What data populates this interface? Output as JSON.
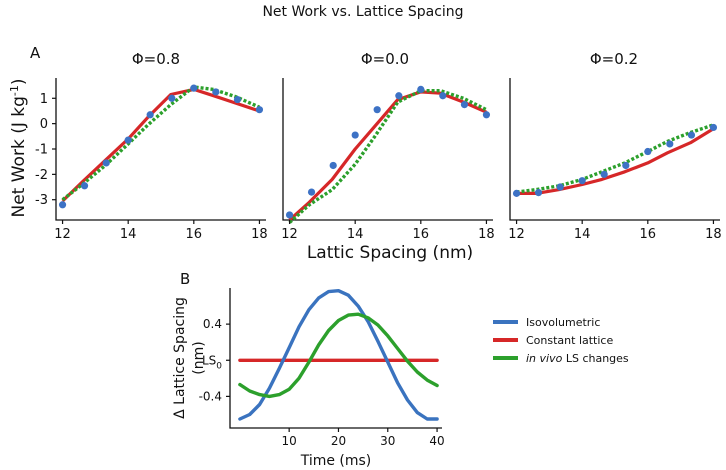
{
  "figure_title": "Net Work vs. Lattice Spacing",
  "panel_a_label": "A",
  "panel_b_label": "B",
  "colors": {
    "red": "#d62728",
    "green": "#2ca02c",
    "blue_line": "#3a73bf",
    "blue_point": "#3d72c5",
    "axis": "#111111"
  },
  "chart_data": [
    {
      "type": "line",
      "panel": "A",
      "title": "Φ=0.8",
      "xlabel": "Lattic Spacing (nm)",
      "ylabel": "Net Work (J kg⁻¹)",
      "xlim": [
        11.8,
        18.2
      ],
      "ylim": [
        -3.8,
        1.8
      ],
      "xticks": [
        "12",
        "14",
        "16",
        "18"
      ],
      "yticks": [
        "1",
        "0",
        "-1",
        "-2",
        "-3"
      ],
      "series": [
        {
          "name": "Constant lattice",
          "style": "solid",
          "color": "#d62728",
          "x": [
            12,
            12.6,
            13.3,
            14,
            14.6,
            15.3,
            16,
            16.6,
            17.3,
            18
          ],
          "y": [
            -3.05,
            -2.3,
            -1.45,
            -0.6,
            0.25,
            1.15,
            1.35,
            1.1,
            0.8,
            0.5
          ]
        },
        {
          "name": "in vivo LS changes",
          "style": "dotted",
          "color": "#2ca02c",
          "x": [
            12,
            12.6,
            13.3,
            14,
            14.6,
            15.3,
            16,
            16.6,
            17.3,
            18
          ],
          "y": [
            -3.0,
            -2.4,
            -1.65,
            -0.8,
            -0.05,
            0.75,
            1.45,
            1.35,
            1.05,
            0.65
          ]
        },
        {
          "name": "Isovolumetric",
          "style": "points",
          "color": "#3d72c5",
          "x": [
            12,
            12.67,
            13.33,
            14,
            14.67,
            15.33,
            16,
            16.67,
            17.33,
            18
          ],
          "y": [
            -3.2,
            -2.45,
            -1.55,
            -0.65,
            0.35,
            1.0,
            1.4,
            1.25,
            0.95,
            0.55
          ]
        }
      ]
    },
    {
      "type": "line",
      "panel": "A",
      "title": "Φ=0.0",
      "xlim": [
        11.8,
        18.2
      ],
      "ylim": [
        -3.8,
        1.8
      ],
      "xticks": [
        "12",
        "14",
        "16",
        "18"
      ],
      "series": [
        {
          "name": "Constant lattice",
          "style": "solid",
          "color": "#d62728",
          "x": [
            12,
            12.6,
            13.3,
            14,
            14.6,
            15.3,
            16,
            16.6,
            17.3,
            18
          ],
          "y": [
            -3.8,
            -3.1,
            -2.2,
            -1.0,
            -0.1,
            0.95,
            1.25,
            1.2,
            0.85,
            0.45
          ]
        },
        {
          "name": "in vivo LS changes",
          "style": "dotted",
          "color": "#2ca02c",
          "x": [
            12,
            12.6,
            13.3,
            14,
            14.6,
            15.3,
            16,
            16.6,
            17.3,
            18
          ],
          "y": [
            -3.9,
            -3.2,
            -2.6,
            -1.6,
            -0.5,
            0.85,
            1.3,
            1.3,
            1.0,
            0.55
          ]
        },
        {
          "name": "Isovolumetric",
          "style": "points",
          "color": "#3d72c5",
          "x": [
            12,
            12.67,
            13.33,
            14,
            14.67,
            15.33,
            16,
            16.67,
            17.33,
            18
          ],
          "y": [
            -3.6,
            -2.7,
            -1.65,
            -0.45,
            0.55,
            1.1,
            1.35,
            1.1,
            0.75,
            0.35
          ]
        }
      ]
    },
    {
      "type": "line",
      "panel": "A",
      "title": "Φ=0.2",
      "xlim": [
        11.8,
        18.2
      ],
      "ylim": [
        -3.8,
        1.8
      ],
      "xticks": [
        "12",
        "14",
        "16",
        "18"
      ],
      "series": [
        {
          "name": "Constant lattice",
          "style": "solid",
          "color": "#d62728",
          "x": [
            12,
            12.6,
            13.3,
            14,
            14.6,
            15.3,
            16,
            16.6,
            17.3,
            18
          ],
          "y": [
            -2.75,
            -2.75,
            -2.6,
            -2.4,
            -2.2,
            -1.9,
            -1.55,
            -1.15,
            -0.75,
            -0.2
          ]
        },
        {
          "name": "in vivo LS changes",
          "style": "dotted",
          "color": "#2ca02c",
          "x": [
            12,
            12.6,
            13.3,
            14,
            14.6,
            15.3,
            16,
            16.6,
            17.3,
            18
          ],
          "y": [
            -2.7,
            -2.6,
            -2.45,
            -2.2,
            -1.9,
            -1.55,
            -1.1,
            -0.7,
            -0.35,
            -0.05
          ]
        },
        {
          "name": "Isovolumetric",
          "style": "points",
          "color": "#3d72c5",
          "x": [
            12,
            12.67,
            13.33,
            14,
            14.67,
            15.33,
            16,
            16.67,
            17.33,
            18
          ],
          "y": [
            -2.75,
            -2.72,
            -2.5,
            -2.25,
            -2.0,
            -1.65,
            -1.1,
            -0.8,
            -0.45,
            -0.15
          ]
        }
      ]
    },
    {
      "type": "line",
      "panel": "B",
      "xlabel": "Time (ms)",
      "ylabel": "Δ Lattice Spacing (nm)",
      "xlim": [
        -2,
        41
      ],
      "ylim": [
        -0.75,
        0.8
      ],
      "xticks": [
        "10",
        "20",
        "30",
        "40"
      ],
      "yticks": [
        "0.4",
        "LS0",
        "-0.4"
      ],
      "series": [
        {
          "name": "Isovolumetric",
          "color": "#3a73bf",
          "x": [
            0,
            2,
            4,
            6,
            8,
            10,
            12,
            14,
            16,
            18,
            20,
            22,
            24,
            26,
            28,
            30,
            32,
            34,
            36,
            38,
            40
          ],
          "y": [
            -0.65,
            -0.6,
            -0.49,
            -0.31,
            -0.09,
            0.14,
            0.37,
            0.56,
            0.69,
            0.76,
            0.77,
            0.72,
            0.6,
            0.43,
            0.21,
            -0.02,
            -0.25,
            -0.44,
            -0.58,
            -0.65,
            -0.65
          ]
        },
        {
          "name": "Constant lattice",
          "color": "#d62728",
          "x": [
            0,
            40
          ],
          "y": [
            0,
            0
          ]
        },
        {
          "name": "in vivo LS changes",
          "color": "#2ca02c",
          "x": [
            0,
            2,
            4,
            6,
            8,
            10,
            12,
            14,
            16,
            18,
            20,
            22,
            24,
            26,
            28,
            30,
            32,
            34,
            36,
            38,
            40
          ],
          "y": [
            -0.27,
            -0.34,
            -0.38,
            -0.4,
            -0.38,
            -0.32,
            -0.2,
            -0.02,
            0.17,
            0.33,
            0.44,
            0.5,
            0.51,
            0.47,
            0.39,
            0.27,
            0.13,
            -0.01,
            -0.13,
            -0.22,
            -0.28
          ]
        }
      ],
      "legend": [
        "Isovolumetric",
        "Constant lattice",
        "in vivo LS changes"
      ]
    }
  ],
  "legend_labels": {
    "isovolumetric": "Isovolumetric",
    "constant": "Constant lattice",
    "invivo_italic": "in vivo",
    "invivo_rest": " LS changes"
  },
  "panel_b_ytick_ls": "LS",
  "panel_b_ytick_ls_sub": "0",
  "panel_a_ylabel_main": "Net Work (J kg",
  "panel_a_ylabel_sup": "-1",
  "panel_a_ylabel_close": ")",
  "panel_b_ylabel_line1": "Δ Lattice Spacing",
  "panel_b_ylabel_line2": "(nm)"
}
